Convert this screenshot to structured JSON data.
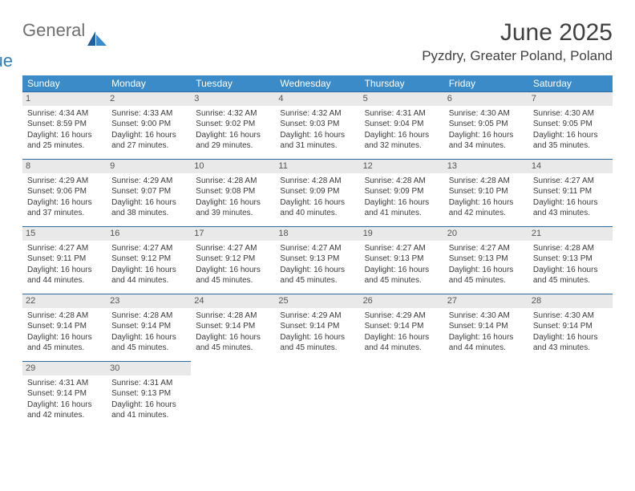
{
  "logo": {
    "word1": "General",
    "word2": "Blue",
    "tri_color": "#2f7fbf"
  },
  "title": "June 2025",
  "location": "Pyzdry, Greater Poland, Poland",
  "colors": {
    "header_bg": "#3b8bc8",
    "header_text": "#ffffff",
    "row_divider": "#2d6aa0",
    "daynum_bg": "#e9e9e9",
    "text": "#3a3a3a"
  },
  "weekdays": [
    "Sunday",
    "Monday",
    "Tuesday",
    "Wednesday",
    "Thursday",
    "Friday",
    "Saturday"
  ],
  "days": [
    {
      "n": 1,
      "sr": "4:34 AM",
      "ss": "8:59 PM",
      "dh": 16,
      "dm": 25
    },
    {
      "n": 2,
      "sr": "4:33 AM",
      "ss": "9:00 PM",
      "dh": 16,
      "dm": 27
    },
    {
      "n": 3,
      "sr": "4:32 AM",
      "ss": "9:02 PM",
      "dh": 16,
      "dm": 29
    },
    {
      "n": 4,
      "sr": "4:32 AM",
      "ss": "9:03 PM",
      "dh": 16,
      "dm": 31
    },
    {
      "n": 5,
      "sr": "4:31 AM",
      "ss": "9:04 PM",
      "dh": 16,
      "dm": 32
    },
    {
      "n": 6,
      "sr": "4:30 AM",
      "ss": "9:05 PM",
      "dh": 16,
      "dm": 34
    },
    {
      "n": 7,
      "sr": "4:30 AM",
      "ss": "9:05 PM",
      "dh": 16,
      "dm": 35
    },
    {
      "n": 8,
      "sr": "4:29 AM",
      "ss": "9:06 PM",
      "dh": 16,
      "dm": 37
    },
    {
      "n": 9,
      "sr": "4:29 AM",
      "ss": "9:07 PM",
      "dh": 16,
      "dm": 38
    },
    {
      "n": 10,
      "sr": "4:28 AM",
      "ss": "9:08 PM",
      "dh": 16,
      "dm": 39
    },
    {
      "n": 11,
      "sr": "4:28 AM",
      "ss": "9:09 PM",
      "dh": 16,
      "dm": 40
    },
    {
      "n": 12,
      "sr": "4:28 AM",
      "ss": "9:09 PM",
      "dh": 16,
      "dm": 41
    },
    {
      "n": 13,
      "sr": "4:28 AM",
      "ss": "9:10 PM",
      "dh": 16,
      "dm": 42
    },
    {
      "n": 14,
      "sr": "4:27 AM",
      "ss": "9:11 PM",
      "dh": 16,
      "dm": 43
    },
    {
      "n": 15,
      "sr": "4:27 AM",
      "ss": "9:11 PM",
      "dh": 16,
      "dm": 44
    },
    {
      "n": 16,
      "sr": "4:27 AM",
      "ss": "9:12 PM",
      "dh": 16,
      "dm": 44
    },
    {
      "n": 17,
      "sr": "4:27 AM",
      "ss": "9:12 PM",
      "dh": 16,
      "dm": 45
    },
    {
      "n": 18,
      "sr": "4:27 AM",
      "ss": "9:13 PM",
      "dh": 16,
      "dm": 45
    },
    {
      "n": 19,
      "sr": "4:27 AM",
      "ss": "9:13 PM",
      "dh": 16,
      "dm": 45
    },
    {
      "n": 20,
      "sr": "4:27 AM",
      "ss": "9:13 PM",
      "dh": 16,
      "dm": 45
    },
    {
      "n": 21,
      "sr": "4:28 AM",
      "ss": "9:13 PM",
      "dh": 16,
      "dm": 45
    },
    {
      "n": 22,
      "sr": "4:28 AM",
      "ss": "9:14 PM",
      "dh": 16,
      "dm": 45
    },
    {
      "n": 23,
      "sr": "4:28 AM",
      "ss": "9:14 PM",
      "dh": 16,
      "dm": 45
    },
    {
      "n": 24,
      "sr": "4:28 AM",
      "ss": "9:14 PM",
      "dh": 16,
      "dm": 45
    },
    {
      "n": 25,
      "sr": "4:29 AM",
      "ss": "9:14 PM",
      "dh": 16,
      "dm": 45
    },
    {
      "n": 26,
      "sr": "4:29 AM",
      "ss": "9:14 PM",
      "dh": 16,
      "dm": 44
    },
    {
      "n": 27,
      "sr": "4:30 AM",
      "ss": "9:14 PM",
      "dh": 16,
      "dm": 44
    },
    {
      "n": 28,
      "sr": "4:30 AM",
      "ss": "9:14 PM",
      "dh": 16,
      "dm": 43
    },
    {
      "n": 29,
      "sr": "4:31 AM",
      "ss": "9:14 PM",
      "dh": 16,
      "dm": 42
    },
    {
      "n": 30,
      "sr": "4:31 AM",
      "ss": "9:13 PM",
      "dh": 16,
      "dm": 41
    }
  ],
  "labels": {
    "sunrise": "Sunrise:",
    "sunset": "Sunset:",
    "daylight_prefix": "Daylight:",
    "hours_word": "hours",
    "and_word": "and",
    "minutes_word": "minutes."
  }
}
